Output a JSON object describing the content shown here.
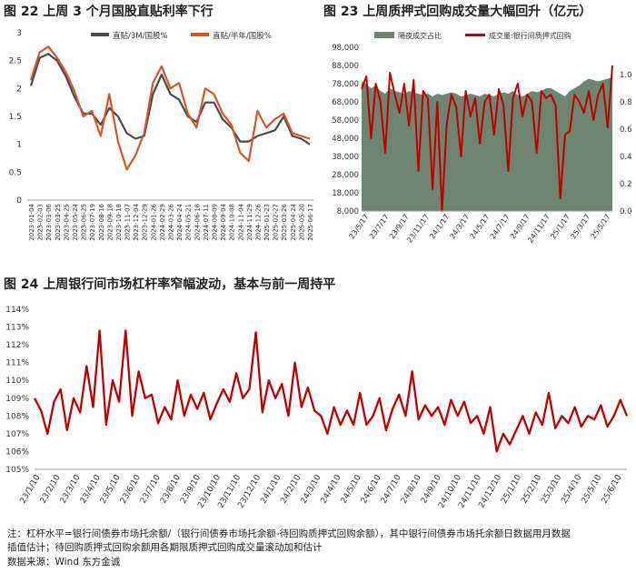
{
  "titles": {
    "fig22": "图 22  上周 3 个月国股直贴利率下行",
    "fig23": "图 23  上周质押式回购成交量大幅回升（亿元）",
    "fig24": "图 24  上周银行间市场杠杆率窄幅波动，基本与前一周持平"
  },
  "notes": {
    "line1": "注：杠杆水平=银行间债券市场托余额/（银行间债券市场托余额-待回购质押式回购余额），其中银行间债券市场托余额日数据用月数据",
    "line2": "插值估计；待回购质押式回购余额用各期限质押式回购成交量滚动加和估计",
    "source": "数据来源：Wind  东方金诚"
  },
  "chart_data": [
    {
      "id": "fig22",
      "type": "line",
      "ylim": [
        0,
        3
      ],
      "yticks": [
        "0",
        "0.5",
        "1",
        "1.5",
        "2",
        "2.5",
        "3"
      ],
      "x": [
        "2023-01-04",
        "2023-02-03",
        "2023-03-06",
        "2023-03-25",
        "2023-04-25",
        "2023-05-24",
        "2023-06-25",
        "2023-07-19",
        "2023-08-16",
        "2023-09-18",
        "2023-10-18",
        "2023-11-07",
        "2023-12-04",
        "2023-12-29",
        "2024-01-26",
        "2024-02-29",
        "2024-03-26",
        "2024-04-24",
        "2024-05-21",
        "2024-06-18",
        "2024-07-11",
        "2024-08-09",
        "2024-09-04",
        "2024-10-08",
        "2024-11-04",
        "2024-11-29",
        "2024-12-26",
        "2025-01-23",
        "2025-02-27",
        "2025-03-26",
        "2025-04-24",
        "2025-05-20",
        "2025-06-17"
      ],
      "series": [
        {
          "name": "直贴/3M/国股%",
          "color": "#4a4a4a",
          "values": [
            2.05,
            2.55,
            2.62,
            2.5,
            2.22,
            1.85,
            1.55,
            1.55,
            1.35,
            1.65,
            1.5,
            1.2,
            1.1,
            1.15,
            1.9,
            2.25,
            1.9,
            1.8,
            1.5,
            1.4,
            1.75,
            1.75,
            1.45,
            1.3,
            1.05,
            1.05,
            1.15,
            1.2,
            1.25,
            1.5,
            1.15,
            1.1,
            1.0
          ]
        },
        {
          "name": "直贴/半年/国股%",
          "color": "#d9542b",
          "values": [
            2.15,
            2.65,
            2.75,
            2.55,
            2.3,
            1.95,
            1.5,
            1.6,
            1.15,
            1.9,
            1.05,
            0.55,
            0.8,
            1.2,
            2.1,
            2.4,
            2.0,
            2.1,
            1.55,
            1.3,
            2.0,
            1.9,
            1.55,
            1.35,
            0.85,
            0.7,
            1.6,
            1.3,
            1.45,
            1.55,
            1.2,
            1.15,
            1.1
          ]
        }
      ]
    },
    {
      "id": "fig23",
      "type": "line",
      "y_left": {
        "ticks": [
          "8,000",
          "18,000",
          "28,000",
          "38,000",
          "48,000",
          "58,000",
          "68,000",
          "78,000",
          "88,000",
          "98,000"
        ],
        "lim": [
          8000,
          98000
        ]
      },
      "y_right": {
        "ticks": [
          "0.0",
          "0.2",
          "0.4",
          "0.6",
          "0.8",
          "1.0"
        ],
        "lim": [
          0,
          1.2
        ]
      },
      "x_ticks": [
        "23/5/17",
        "23/7/17",
        "23/9/17",
        "23/11/17",
        "24/1/17",
        "24/3/17",
        "24/5/17",
        "24/7/17",
        "24/9/17",
        "24/11/17",
        "25/1/17",
        "25/3/17",
        "25/5/17"
      ],
      "series": [
        {
          "name": "隔夜成交占比",
          "type": "area",
          "axis": "right",
          "color": "#6e8572",
          "values": [
            0.95,
            0.93,
            0.9,
            0.92,
            0.88,
            0.86,
            0.9,
            0.88,
            0.87,
            0.86,
            0.88,
            0.87,
            0.86,
            0.85,
            0.86,
            0.84,
            0.86,
            0.85,
            0.86,
            0.87,
            0.86,
            0.84,
            0.85,
            0.86,
            0.85,
            0.84,
            0.86,
            0.85,
            0.84,
            0.86,
            0.87,
            0.86,
            0.88,
            0.85,
            0.84,
            0.86,
            0.88,
            0.87,
            0.88,
            0.9,
            0.9,
            0.88,
            0.86,
            0.84,
            0.88,
            0.9,
            0.92,
            0.95,
            0.97,
            0.96,
            0.95,
            0.96,
            0.97,
            0.98
          ]
        },
        {
          "name": "成交量:银行间质押式回购",
          "type": "line",
          "axis": "left",
          "color": "#c00000",
          "values": [
            75000,
            82000,
            48000,
            78000,
            68000,
            40000,
            84000,
            72000,
            62000,
            78000,
            55000,
            80000,
            30000,
            74000,
            70000,
            20000,
            68000,
            8000,
            56000,
            72000,
            65000,
            38000,
            74000,
            60000,
            70000,
            45000,
            68000,
            72000,
            50000,
            75000,
            66000,
            30000,
            70000,
            78000,
            60000,
            72000,
            68000,
            40000,
            74000,
            70000,
            72000,
            66000,
            15000,
            50000,
            52000,
            72000,
            68000,
            62000,
            74000,
            58000,
            72000,
            78000,
            54000,
            88000
          ]
        }
      ]
    },
    {
      "id": "fig24",
      "type": "line",
      "ylim": [
        105,
        114
      ],
      "yticks": [
        "105%",
        "106%",
        "107%",
        "108%",
        "109%",
        "110%",
        "111%",
        "112%",
        "113%",
        "114%"
      ],
      "x_ticks": [
        "23/1/10",
        "23/2/10",
        "23/3/10",
        "23/4/10",
        "23/5/10",
        "23/6/10",
        "23/7/10",
        "23/8/10",
        "23/9/10",
        "23/10/10",
        "23/11/10",
        "23/12/10",
        "24/1/10",
        "24/2/10",
        "24/3/10",
        "24/4/10",
        "24/5/10",
        "24/6/10",
        "24/7/10",
        "24/8/10",
        "24/9/10",
        "24/10/10",
        "24/11/10",
        "24/12/10",
        "25/1/10",
        "25/2/10",
        "25/3/10",
        "25/4/10",
        "25/5/10",
        "25/6/10"
      ],
      "series": [
        {
          "name": "杠杆率",
          "color": "#c00000",
          "values": [
            109.0,
            108.3,
            107.0,
            108.8,
            109.5,
            107.2,
            109.0,
            108.2,
            110.8,
            108.5,
            112.8,
            107.5,
            110.0,
            108.8,
            112.8,
            108.0,
            110.5,
            109.0,
            109.2,
            107.6,
            108.5,
            107.8,
            110.0,
            108.0,
            109.2,
            108.4,
            109.3,
            107.8,
            108.7,
            109.5,
            108.8,
            110.4,
            109.0,
            109.5,
            112.7,
            108.2,
            110.0,
            109.0,
            109.8,
            108.0,
            111.0,
            108.5,
            109.6,
            108.3,
            108.0,
            107.0,
            108.5,
            107.5,
            108.3,
            107.5,
            109.3,
            107.5,
            108.0,
            109.0,
            107.2,
            108.4,
            109.2,
            108.0,
            110.5,
            107.8,
            108.6,
            108.0,
            108.5,
            107.5,
            108.9,
            108.0,
            108.8,
            107.6,
            108.0,
            107.0,
            108.5,
            106.0,
            107.0,
            106.4,
            107.2,
            108.0,
            107.0,
            108.2,
            107.5,
            109.3,
            107.3,
            108.0,
            107.6,
            108.5,
            107.4,
            108.0,
            107.8,
            108.6,
            107.4,
            108.0,
            108.9,
            108.0
          ]
        }
      ]
    }
  ]
}
